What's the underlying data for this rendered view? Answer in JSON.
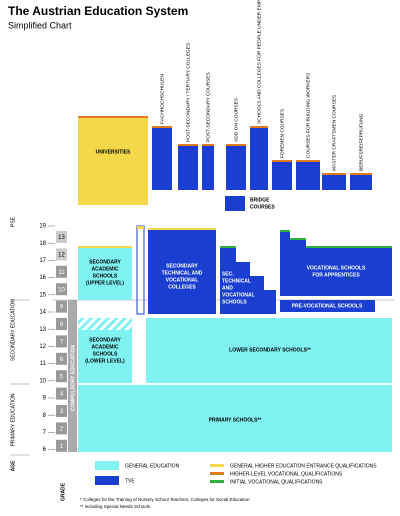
{
  "header": {
    "title": "The Austrian Education System",
    "subtitle": "Simplified Chart"
  },
  "side_labels": {
    "pse": "PSE",
    "secondary": "SECONDARY EDUCATION",
    "primary": "PRIMARY EDUCATION",
    "age": "AGE",
    "grade": "GRADE",
    "compulsory": "COMPULSORY EDUCATION"
  },
  "ages": [
    19,
    18,
    17,
    16,
    15,
    14,
    13,
    12,
    11,
    10,
    9,
    8,
    7,
    6
  ],
  "grades": [
    13,
    12,
    11,
    10,
    9,
    8,
    7,
    6,
    5,
    4,
    3,
    2,
    1
  ],
  "schools": {
    "universities": "UNIVERSITIES",
    "bridge": [
      "BRIDGE",
      "COURSES"
    ],
    "upper_academic": [
      "SECONDARY",
      "ACADEMIC",
      "SCHOOLS",
      "(UPPER LEVEL)"
    ],
    "lower_academic": [
      "SECONDARY",
      "ACADEMIC",
      "SCHOOLS",
      "(LOWER LEVEL)"
    ],
    "technical_colleges": [
      "SECONDARY",
      "TECHNICAL AND",
      "VOCATIONAL",
      "COLLEGES"
    ],
    "technical_schools": [
      "SEC.",
      "TECHNICAL",
      "AND",
      "VOCATIONAL",
      "SCHOOLS"
    ],
    "apprentices": [
      "VOCATIONAL SCHOOLS",
      "FOR APPRENTICES"
    ],
    "prevocational": "PRE-VOCATIONAL SCHOOLS",
    "lower_secondary": "LOWER SECONDARY SCHOOLS**",
    "primary": "PRIMARY SCHOOLS**"
  },
  "courses": [
    "FACHHOCHSCHULEN",
    "POST-SECONDARY / TERTIARY COLLEGES",
    "POST-SECONDARY COURSES",
    "ADD-ON COURSES",
    "SCHOOLS AND COLLEGES FOR PEOPLE UNDER EMPLOYMENT",
    "FOREMEN COURSES",
    "COURSES FOR BUILDING WORKERS",
    "MASTER CRAFTSMEN COURSES",
    "BERUFSREIFEPRÜFUNG"
  ],
  "legend": {
    "general": "GENERAL EDUCATION",
    "tve": "TVE",
    "entrance": "GENERAL HIGHER EDUCATION ENTRANCE QUALIFICATIONS",
    "higher": "HIGHER-LEVEL VOCATIONAL QUALIFICATIONS",
    "initial": "INITIAL VOCATIONAL QUALIFICATIONS"
  },
  "footnotes": [
    "*   Colleges for the Training of Nursery School Teachers, Colleges for Social Education",
    "**  including Special Needs Schools"
  ]
}
